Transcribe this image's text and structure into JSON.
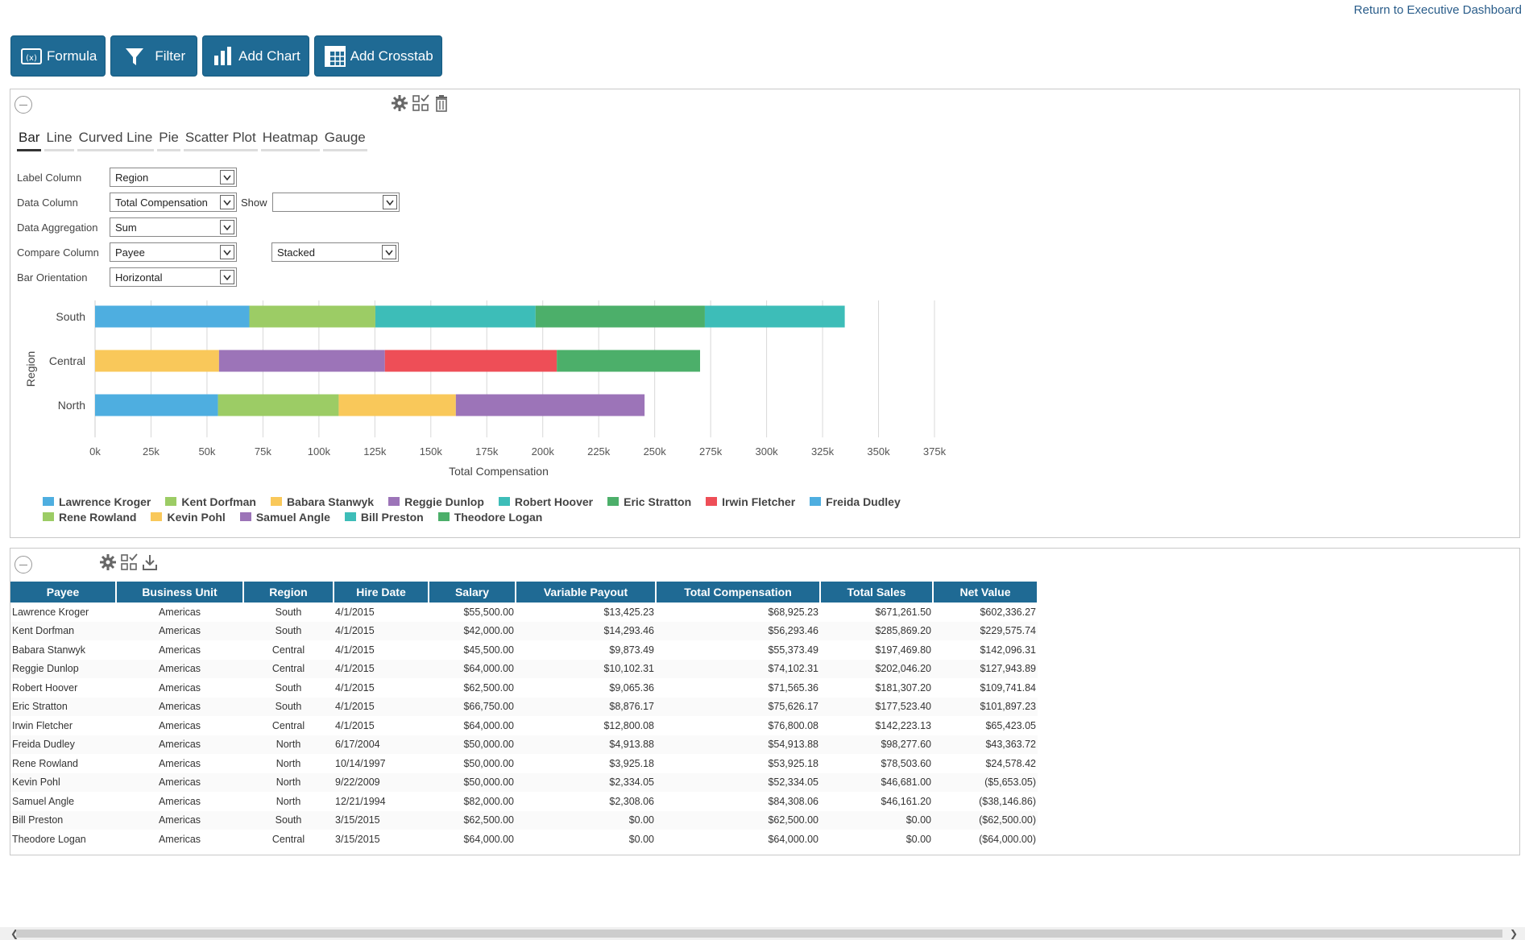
{
  "header": {
    "return_link": "Return to Executive Dashboard"
  },
  "toolbar": {
    "formula": "Formula",
    "filter": "Filter",
    "add_chart": "Add Chart",
    "add_crosstab": "Add Crosstab"
  },
  "chart_tabs": [
    "Bar",
    "Line",
    "Curved Line",
    "Pie",
    "Scatter Plot",
    "Heatmap",
    "Gauge"
  ],
  "form": {
    "label_column": {
      "label": "Label Column",
      "value": "Region"
    },
    "data_column": {
      "label": "Data Column",
      "value": "Total Compensation"
    },
    "show": {
      "label": "Show",
      "value": ""
    },
    "data_aggregation": {
      "label": "Data Aggregation",
      "value": "Sum"
    },
    "compare_column": {
      "label": "Compare Column",
      "value": "Payee"
    },
    "stack_mode": {
      "value": "Stacked"
    },
    "bar_orientation": {
      "label": "Bar Orientation",
      "value": "Horizontal"
    }
  },
  "chart_data": {
    "type": "bar",
    "orientation": "horizontal",
    "stacked": true,
    "xlabel": "Total Compensation",
    "ylabel": "Region",
    "xlim": [
      0,
      375000
    ],
    "x_ticks": [
      "0k",
      "25k",
      "50k",
      "75k",
      "100k",
      "125k",
      "150k",
      "175k",
      "200k",
      "225k",
      "250k",
      "275k",
      "300k",
      "325k",
      "350k",
      "375k"
    ],
    "categories": [
      "South",
      "Central",
      "North"
    ],
    "grid": true,
    "legend_position": "bottom",
    "series": [
      {
        "name": "Lawrence Kroger",
        "color": "#4eaee0",
        "values": [
          68925.23,
          0,
          0
        ]
      },
      {
        "name": "Kent Dorfman",
        "color": "#9ccc65",
        "values": [
          56293.46,
          0,
          0
        ]
      },
      {
        "name": "Babara Stanwyk",
        "color": "#f9c85a",
        "values": [
          0,
          55373.49,
          0
        ]
      },
      {
        "name": "Reggie Dunlop",
        "color": "#9c74b8",
        "values": [
          0,
          74102.31,
          0
        ]
      },
      {
        "name": "Robert Hoover",
        "color": "#3dbdb8",
        "values": [
          71565.36,
          0,
          0
        ]
      },
      {
        "name": "Eric Stratton",
        "color": "#4caf6a",
        "values": [
          75626.17,
          0,
          0
        ]
      },
      {
        "name": "Irwin Fletcher",
        "color": "#ee4e57",
        "values": [
          0,
          76800.08,
          0
        ]
      },
      {
        "name": "Freida Dudley",
        "color": "#4eaee0",
        "values": [
          0,
          0,
          54913.88
        ]
      },
      {
        "name": "Rene Rowland",
        "color": "#9ccc65",
        "values": [
          0,
          0,
          53925.18
        ]
      },
      {
        "name": "Kevin Pohl",
        "color": "#f9c85a",
        "values": [
          0,
          0,
          52334.05
        ]
      },
      {
        "name": "Samuel Angle",
        "color": "#9c74b8",
        "values": [
          0,
          0,
          84308.06
        ]
      },
      {
        "name": "Bill Preston",
        "color": "#3dbdb8",
        "values": [
          62500.0,
          0,
          0
        ]
      },
      {
        "name": "Theodore Logan",
        "color": "#4caf6a",
        "values": [
          0,
          64000.0,
          0
        ]
      }
    ]
  },
  "table": {
    "columns": [
      "Payee",
      "Business Unit",
      "Region",
      "Hire Date",
      "Salary",
      "Variable Payout",
      "Total Compensation",
      "Total Sales",
      "Net Value"
    ],
    "rows": [
      [
        "Lawrence Kroger",
        "Americas",
        "South",
        "4/1/2015",
        "$55,500.00",
        "$13,425.23",
        "$68,925.23",
        "$671,261.50",
        "$602,336.27"
      ],
      [
        "Kent Dorfman",
        "Americas",
        "South",
        "4/1/2015",
        "$42,000.00",
        "$14,293.46",
        "$56,293.46",
        "$285,869.20",
        "$229,575.74"
      ],
      [
        "Babara Stanwyk",
        "Americas",
        "Central",
        "4/1/2015",
        "$45,500.00",
        "$9,873.49",
        "$55,373.49",
        "$197,469.80",
        "$142,096.31"
      ],
      [
        "Reggie Dunlop",
        "Americas",
        "Central",
        "4/1/2015",
        "$64,000.00",
        "$10,102.31",
        "$74,102.31",
        "$202,046.20",
        "$127,943.89"
      ],
      [
        "Robert Hoover",
        "Americas",
        "South",
        "4/1/2015",
        "$62,500.00",
        "$9,065.36",
        "$71,565.36",
        "$181,307.20",
        "$109,741.84"
      ],
      [
        "Eric Stratton",
        "Americas",
        "South",
        "4/1/2015",
        "$66,750.00",
        "$8,876.17",
        "$75,626.17",
        "$177,523.40",
        "$101,897.23"
      ],
      [
        "Irwin Fletcher",
        "Americas",
        "Central",
        "4/1/2015",
        "$64,000.00",
        "$12,800.08",
        "$76,800.08",
        "$142,223.13",
        "$65,423.05"
      ],
      [
        "Freida Dudley",
        "Americas",
        "North",
        "6/17/2004",
        "$50,000.00",
        "$4,913.88",
        "$54,913.88",
        "$98,277.60",
        "$43,363.72"
      ],
      [
        "Rene Rowland",
        "Americas",
        "North",
        "10/14/1997",
        "$50,000.00",
        "$3,925.18",
        "$53,925.18",
        "$78,503.60",
        "$24,578.42"
      ],
      [
        "Kevin Pohl",
        "Americas",
        "North",
        "9/22/2009",
        "$50,000.00",
        "$2,334.05",
        "$52,334.05",
        "$46,681.00",
        "($5,653.05)"
      ],
      [
        "Samuel Angle",
        "Americas",
        "North",
        "12/21/1994",
        "$82,000.00",
        "$2,308.06",
        "$84,308.06",
        "$46,161.20",
        "($38,146.86)"
      ],
      [
        "Bill Preston",
        "Americas",
        "South",
        "3/15/2015",
        "$62,500.00",
        "$0.00",
        "$62,500.00",
        "$0.00",
        "($62,500.00)"
      ],
      [
        "Theodore Logan",
        "Americas",
        "Central",
        "3/15/2015",
        "$64,000.00",
        "$0.00",
        "$64,000.00",
        "$0.00",
        "($64,000.00)"
      ]
    ]
  }
}
